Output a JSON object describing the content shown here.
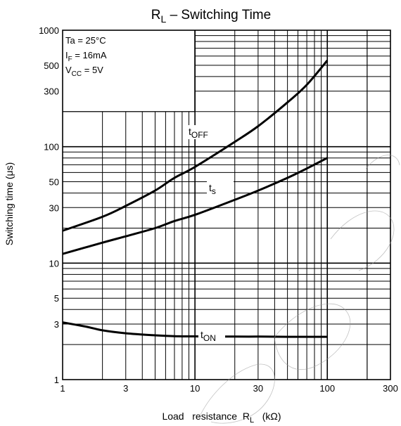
{
  "chart_data": {
    "type": "line",
    "title": {
      "main": "R",
      "sub": "L",
      "rest": " – Switching Time"
    },
    "xlabel": {
      "pre": "Load   resistance  R",
      "sub": "L",
      "post": "   (kΩ)"
    },
    "ylabel": "Switching time  (μs)",
    "xscale": "log",
    "yscale": "log",
    "xlim": [
      1,
      300
    ],
    "ylim": [
      1,
      1000
    ],
    "grid": true,
    "x_ticks": [
      "1",
      "3",
      "10",
      "30",
      "100",
      "300"
    ],
    "y_ticks": [
      "1000",
      "500",
      "300",
      "100",
      "50",
      "30",
      "10",
      "5",
      "3",
      "1"
    ],
    "conditions": [
      {
        "main": "Ta = 25°C",
        "sub": "",
        "post": ""
      },
      {
        "main": "I",
        "sub": "F",
        "post": " = 16mA"
      },
      {
        "main": "V",
        "sub": "CC",
        "post": " = 5V"
      }
    ],
    "series": [
      {
        "name": "tOFF",
        "label_main": "t",
        "label_sub": "OFF",
        "x": [
          1,
          2,
          3,
          5,
          7,
          10,
          20,
          30,
          50,
          70,
          100
        ],
        "y": [
          19,
          25,
          31,
          42,
          54,
          67,
          110,
          150,
          240,
          340,
          550
        ]
      },
      {
        "name": "ts",
        "label_main": "t",
        "label_sub": "s",
        "x": [
          1,
          2,
          3,
          5,
          7,
          10,
          20,
          30,
          50,
          70,
          100
        ],
        "y": [
          12,
          15,
          17,
          20,
          23,
          26,
          35,
          42,
          54,
          65,
          80
        ]
      },
      {
        "name": "tON",
        "label_main": "t",
        "label_sub": "ON",
        "x": [
          1,
          1.5,
          2,
          3,
          5,
          7,
          10,
          20,
          30,
          50,
          100
        ],
        "y": [
          3.1,
          2.85,
          2.65,
          2.5,
          2.4,
          2.36,
          2.35,
          2.34,
          2.34,
          2.33,
          2.33
        ]
      }
    ]
  }
}
